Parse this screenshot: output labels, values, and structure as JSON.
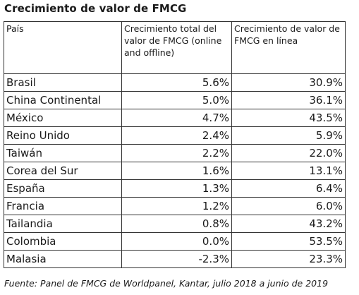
{
  "title": "Crecimiento de valor de FMCG",
  "table": {
    "headers": [
      "País",
      "Crecimiento total del valor de FMCG (online and offline)",
      "Crecimiento de valor de FMCG en línea"
    ],
    "rows": [
      {
        "country": "Brasil",
        "total": "5.6%",
        "online": "30.9%"
      },
      {
        "country": "China Continental",
        "total": "5.0%",
        "online": "36.1%"
      },
      {
        "country": "México",
        "total": "4.7%",
        "online": "43.5%"
      },
      {
        "country": "Reino Unido",
        "total": "2.4%",
        "online": "5.9%"
      },
      {
        "country": "Taiwán",
        "total": "2.2%",
        "online": "22.0%"
      },
      {
        "country": "Corea del Sur",
        "total": "1.6%",
        "online": "13.1%"
      },
      {
        "country": "España",
        "total": "1.3%",
        "online": "6.4%"
      },
      {
        "country": "Francia",
        "total": "1.2%",
        "online": "6.0%"
      },
      {
        "country": "Tailandia",
        "total": "0.8%",
        "online": "43.2%"
      },
      {
        "country": "Colombia",
        "total": "0.0%",
        "online": "53.5%"
      },
      {
        "country": "Malasia",
        "total": "-2.3%",
        "online": "23.3%"
      }
    ]
  },
  "source": "Fuente: Panel de FMCG de Worldpanel, Kantar, julio 2018 a junio de 2019"
}
